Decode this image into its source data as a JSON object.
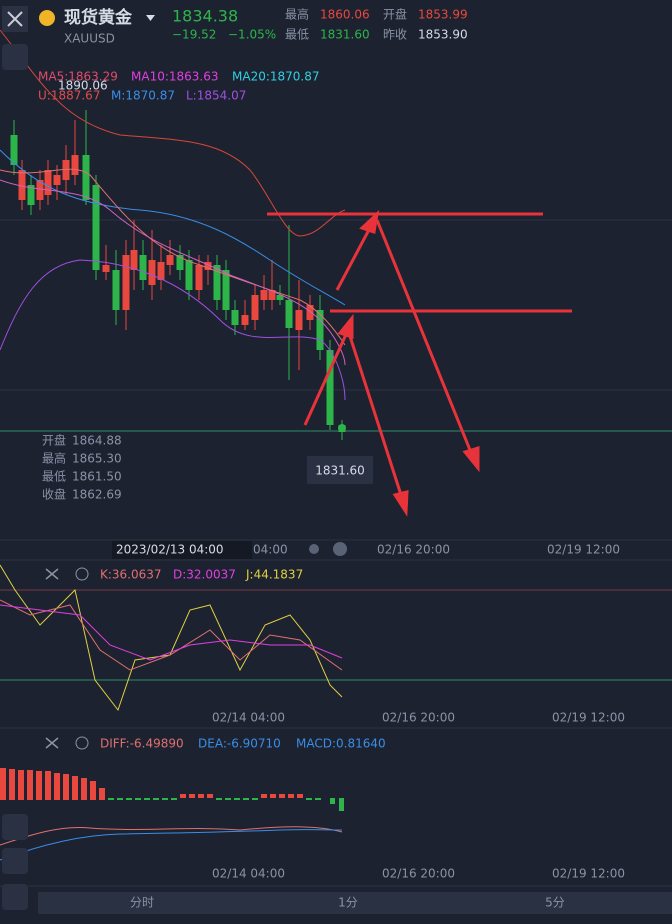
{
  "header": {
    "name": "现货黄金",
    "code": "XAUUSD",
    "price": "1834.38",
    "change": "−19.52",
    "change_pct": "−1.05%",
    "stats": [
      {
        "label": "最高",
        "value": "1860.06"
      },
      {
        "label": "开盘",
        "value": "1853.99"
      },
      {
        "label": "最低",
        "value": "1831.60"
      },
      {
        "label": "昨收",
        "value": "1853.90"
      }
    ]
  },
  "main": {
    "ma": [
      "MA5:1863.29",
      "MA10:1863.63",
      "MA20:1870.87"
    ],
    "boll": [
      "U:1887.67",
      "M:1870.87",
      "L:1854.07"
    ],
    "high_marker": "1890.06",
    "tooltip": [
      {
        "label": "开盘",
        "value": "1864.88"
      },
      {
        "label": "最高",
        "value": "1865.30"
      },
      {
        "label": "最低",
        "value": "1861.50"
      },
      {
        "label": "收盘",
        "value": "1862.69"
      }
    ],
    "price_marker": "1831.60",
    "cursor_time": "2023/02/13 04:00",
    "time_axis": [
      "04:00",
      "02/16 20:00",
      "02/19 12:00"
    ]
  },
  "kdj": {
    "values": [
      "K:36.0637",
      "D:32.0037",
      "J:44.1837"
    ],
    "time_axis": [
      "02/14 04:00",
      "02/16 20:00",
      "02/19 12:00"
    ]
  },
  "macd": {
    "values": [
      "DIFF:-6.49890",
      "DEA:-6.90710",
      "MACD:0.81640"
    ],
    "time_axis": [
      "02/14 04:00",
      "02/16 20:00",
      "02/19 12:00"
    ]
  },
  "tabs": [
    "分时",
    "1分",
    "5分"
  ]
}
